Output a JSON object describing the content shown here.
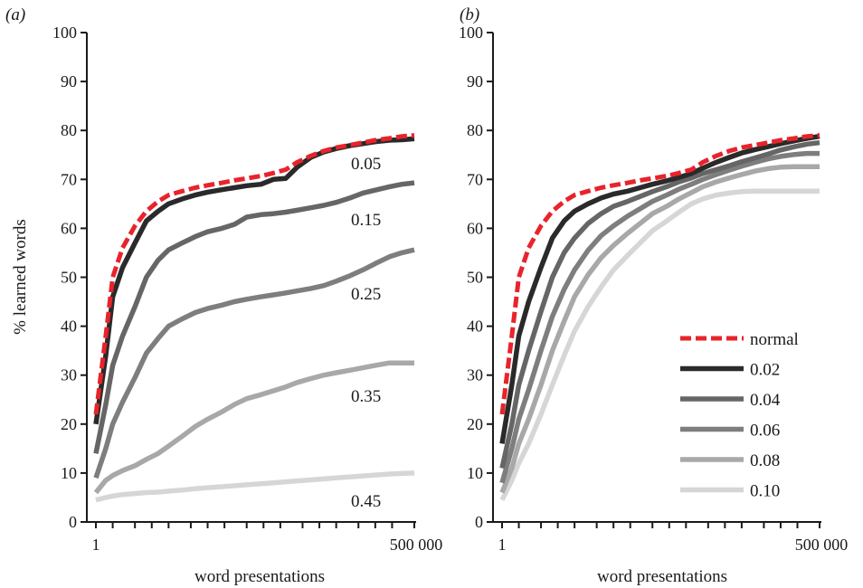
{
  "chart_data": [
    {
      "panel_label": "(a)",
      "type": "line",
      "xlabel": "word presentations",
      "ylabel": "% learned words",
      "xscale": "log",
      "xlim": [
        1,
        500000
      ],
      "ylim": [
        0,
        100
      ],
      "x_tick_labels": [
        "1",
        "500 000"
      ],
      "y_ticks": [
        0,
        10,
        20,
        30,
        40,
        50,
        60,
        70,
        80,
        90,
        100
      ],
      "x": [
        1,
        1.5,
        2,
        3,
        5,
        8,
        13,
        20,
        35,
        60,
        100,
        180,
        300,
        500,
        900,
        1500,
        2500,
        4000,
        7000,
        12000,
        20000,
        35000,
        60000,
        100000,
        180000,
        300000,
        500000
      ],
      "series": [
        {
          "name": "",
          "line_label": "0.05",
          "color": "#2a2a2a",
          "values": [
            20,
            34,
            46,
            52,
            57,
            61.5,
            63.5,
            65,
            66,
            66.8,
            67.4,
            67.9,
            68.3,
            68.7,
            69,
            70,
            70.2,
            72.5,
            74.5,
            75.6,
            76.3,
            76.9,
            77.3,
            77.7,
            78,
            78.1,
            78.3
          ]
        },
        {
          "name": "",
          "line_label": "0.15",
          "color": "#666666",
          "values": [
            14,
            24,
            32,
            38,
            44,
            50,
            53.5,
            55.6,
            57,
            58.3,
            59.3,
            60,
            60.8,
            62.3,
            62.8,
            63,
            63.3,
            63.7,
            64.2,
            64.7,
            65.3,
            66.2,
            67.2,
            67.8,
            68.5,
            69,
            69.3
          ]
        },
        {
          "name": "",
          "line_label": "0.25",
          "color": "#7e7e7e",
          "values": [
            9,
            15,
            20,
            24.5,
            29.5,
            34.5,
            37.5,
            40,
            41.5,
            42.8,
            43.6,
            44.3,
            45,
            45.5,
            46,
            46.4,
            46.8,
            47.2,
            47.7,
            48.3,
            49.2,
            50.3,
            51.5,
            52.8,
            54.2,
            55,
            55.6
          ]
        },
        {
          "name": "",
          "line_label": "0.35",
          "color": "#a8a8a8",
          "values": [
            6,
            8.5,
            9.5,
            10.5,
            11.5,
            12.8,
            14,
            15.5,
            17.5,
            19.5,
            21,
            22.5,
            24,
            25.2,
            26,
            26.8,
            27.6,
            28.5,
            29.3,
            30,
            30.5,
            31,
            31.5,
            32,
            32.5,
            32.5,
            32.5
          ]
        },
        {
          "name": "",
          "line_label": "0.45",
          "color": "#d6d6d6",
          "values": [
            4.5,
            5,
            5.3,
            5.6,
            5.8,
            6,
            6.1,
            6.3,
            6.5,
            6.8,
            7,
            7.2,
            7.4,
            7.6,
            7.8,
            8,
            8.2,
            8.4,
            8.6,
            8.8,
            9,
            9.2,
            9.4,
            9.6,
            9.8,
            9.9,
            10
          ]
        },
        {
          "name": "",
          "line_label": "",
          "color": "#e8232b",
          "dashed": true,
          "values": [
            22,
            38,
            50,
            56,
            60.5,
            63.5,
            65.5,
            66.8,
            67.6,
            68.3,
            68.8,
            69.3,
            69.8,
            70.2,
            70.7,
            71.3,
            72,
            73.5,
            74.8,
            75.8,
            76.5,
            77,
            77.5,
            78,
            78.4,
            78.8,
            79
          ]
        }
      ]
    },
    {
      "panel_label": "(b)",
      "type": "line",
      "xlabel": "word presentations",
      "ylabel": "",
      "xscale": "log",
      "xlim": [
        1,
        500000
      ],
      "ylim": [
        0,
        100
      ],
      "x_tick_labels": [
        "1",
        "500 000"
      ],
      "y_ticks": [
        0,
        10,
        20,
        30,
        40,
        50,
        60,
        70,
        80,
        90,
        100
      ],
      "legend": {
        "placement": "bottom-right"
      },
      "x": [
        1,
        1.5,
        2,
        3,
        5,
        8,
        13,
        20,
        35,
        60,
        100,
        180,
        300,
        500,
        900,
        1500,
        2500,
        4000,
        7000,
        12000,
        20000,
        35000,
        60000,
        100000,
        180000,
        300000,
        500000
      ],
      "series": [
        {
          "name": "normal",
          "color": "#e8232b",
          "dashed": true,
          "values": [
            22,
            38,
            50,
            56,
            60.5,
            63.5,
            65.5,
            66.8,
            67.6,
            68.3,
            68.8,
            69.3,
            69.8,
            70.2,
            70.7,
            71.3,
            72,
            73.5,
            74.8,
            75.8,
            76.5,
            77,
            77.5,
            78,
            78.4,
            78.8,
            79
          ]
        },
        {
          "name": "0.02",
          "color": "#2a2a2a",
          "values": [
            16,
            28,
            38,
            45,
            52,
            58,
            61.5,
            63.5,
            65,
            66.2,
            67,
            67.6,
            68.3,
            69,
            69.7,
            70.4,
            71.2,
            72.3,
            73.5,
            74.5,
            75.4,
            76.1,
            76.7,
            77.3,
            77.9,
            78.4,
            78.8
          ]
        },
        {
          "name": "0.04",
          "color": "#666666",
          "values": [
            11,
            20,
            28,
            35,
            43,
            50,
            55,
            58,
            61,
            63,
            64.5,
            65.5,
            66.5,
            67.5,
            68.5,
            69.5,
            70.3,
            71.2,
            72,
            72.8,
            73.6,
            74.4,
            75.2,
            76,
            76.7,
            77.2,
            77.5
          ]
        },
        {
          "name": "0.06",
          "color": "#7e7e7e",
          "values": [
            8,
            15,
            21,
            27,
            35,
            42,
            47.5,
            51.5,
            55.5,
            58.5,
            60.5,
            62.5,
            64,
            65.5,
            66.8,
            68,
            69,
            70,
            71,
            71.9,
            72.7,
            73.5,
            74.2,
            74.7,
            75.1,
            75.3,
            75.3
          ]
        },
        {
          "name": "0.08",
          "color": "#a8a8a8",
          "values": [
            6,
            11,
            16,
            21,
            28,
            35,
            41,
            46,
            50.5,
            54,
            56.5,
            59,
            61,
            63,
            64.5,
            66,
            67.3,
            68.5,
            69.5,
            70.3,
            71,
            71.7,
            72.2,
            72.5,
            72.6,
            72.6,
            72.6
          ]
        },
        {
          "name": "0.10",
          "color": "#d6d6d6",
          "values": [
            4.5,
            8.5,
            12,
            16,
            22,
            28,
            34,
            39,
            44,
            48,
            51.5,
            54.5,
            57,
            59.5,
            61.5,
            63.3,
            65,
            66,
            66.8,
            67.2,
            67.5,
            67.6,
            67.6,
            67.6,
            67.6,
            67.6,
            67.6
          ]
        }
      ]
    }
  ]
}
